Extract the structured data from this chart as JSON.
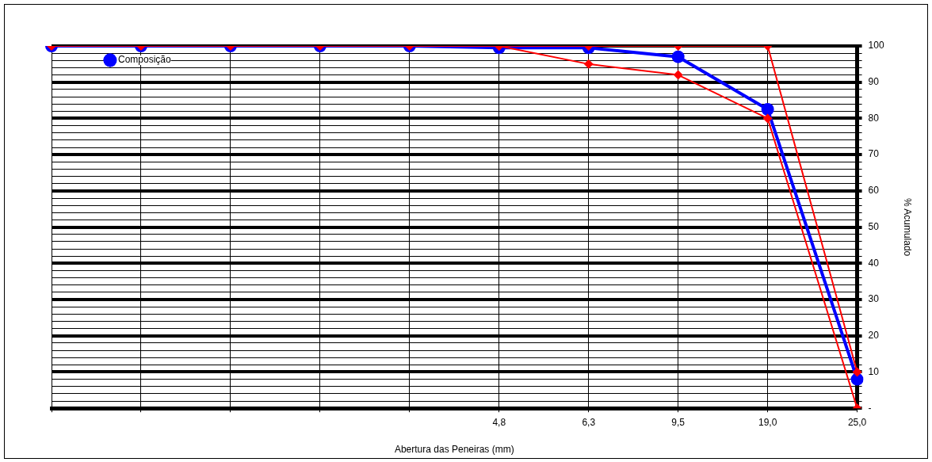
{
  "chart_data": {
    "type": "line",
    "xlabel": "Abertura das Peneiras (mm)",
    "y2label": "% Acumulado",
    "categories": [
      null,
      null,
      null,
      null,
      null,
      "4,8",
      "6,3",
      "9,5",
      "19,0",
      "25,0"
    ],
    "series": [
      {
        "name": "Composição",
        "color": "#0000ff",
        "marker": "circle",
        "axis": "y2",
        "values": [
          100,
          100,
          100,
          100,
          100,
          99.5,
          99.5,
          97,
          82.5,
          8
        ]
      },
      {
        "color": "#ff0000",
        "marker": "diamond",
        "axis": "y2",
        "values": [
          100,
          100,
          100,
          100,
          100,
          100,
          100,
          100,
          100,
          10
        ]
      },
      {
        "color": "#ff0000",
        "marker": "diamond",
        "axis": "y2",
        "values": [
          null,
          null,
          null,
          null,
          null,
          100,
          95,
          92,
          80,
          0
        ]
      }
    ],
    "y2lim": [
      0,
      100
    ],
    "y2ticks": [
      {
        "value": 0,
        "label": "-"
      },
      {
        "value": 2,
        "label": null
      },
      {
        "value": 4,
        "label": null
      },
      {
        "value": 6,
        "label": null
      },
      {
        "value": 8,
        "label": null
      },
      10,
      {
        "value": 12,
        "label": null
      },
      {
        "value": 14,
        "label": null
      },
      {
        "value": 16,
        "label": null
      },
      {
        "value": 18,
        "label": null
      },
      20,
      {
        "value": 22,
        "label": null
      },
      {
        "value": 24,
        "label": null
      },
      {
        "value": 26,
        "label": null
      },
      {
        "value": 28,
        "label": null
      },
      30,
      {
        "value": 32,
        "label": null
      },
      {
        "value": 34,
        "label": null
      },
      {
        "value": 36,
        "label": null
      },
      {
        "value": 38,
        "label": null
      },
      40,
      {
        "value": 42,
        "label": null
      },
      {
        "value": 44,
        "label": null
      },
      {
        "value": 46,
        "label": null
      },
      {
        "value": 48,
        "label": null
      },
      50,
      {
        "value": 52,
        "label": null
      },
      {
        "value": 54,
        "label": null
      },
      {
        "value": 56,
        "label": null
      },
      {
        "value": 58,
        "label": null
      },
      60,
      {
        "value": 62,
        "label": null
      },
      {
        "value": 64,
        "label": null
      },
      {
        "value": 66,
        "label": null
      },
      {
        "value": 68,
        "label": null
      },
      70,
      {
        "value": 72,
        "label": null
      },
      {
        "value": 74,
        "label": null
      },
      {
        "value": 76,
        "label": null
      },
      {
        "value": 78,
        "label": null
      },
      80,
      {
        "value": 82,
        "label": null
      },
      {
        "value": 84,
        "label": null
      },
      {
        "value": 86,
        "label": null
      },
      {
        "value": 88,
        "label": null
      },
      90,
      {
        "value": 92,
        "label": null
      },
      {
        "value": 94,
        "label": null
      },
      {
        "value": 96,
        "label": null
      },
      {
        "value": 98,
        "label": null
      },
      100
    ],
    "grid": true,
    "legend": "top left"
  }
}
